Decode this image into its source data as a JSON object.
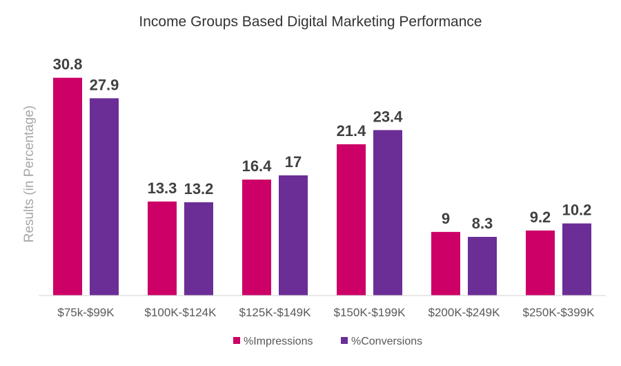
{
  "chart_data": {
    "type": "bar",
    "title": "Income Groups Based Digital Marketing Performance",
    "xlabel": "",
    "ylabel": "Results (in Percentage)",
    "categories": [
      "$75k-$99K",
      "$100K-$124K",
      "$125K-$149K",
      "$150K-$199K",
      "$200K-$249K",
      "$250K-$399K"
    ],
    "series": [
      {
        "name": "%Impressions",
        "color": "#cc0066",
        "values": [
          30.8,
          13.3,
          16.4,
          21.4,
          9,
          9.2
        ]
      },
      {
        "name": "%Conversions",
        "color": "#6b2d96",
        "values": [
          27.9,
          13.2,
          17,
          23.4,
          8.3,
          10.2
        ]
      }
    ],
    "ylim": [
      0,
      35
    ],
    "grid": false,
    "legend": "bottom",
    "data_labels": true
  }
}
